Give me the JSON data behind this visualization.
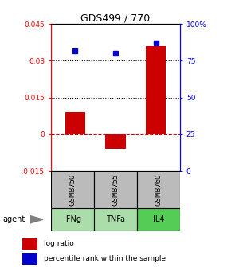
{
  "title": "GDS499 / 770",
  "samples": [
    "GSM8750",
    "GSM8755",
    "GSM8760"
  ],
  "agents": [
    "IFNg",
    "TNFa",
    "IL4"
  ],
  "log_ratios": [
    0.009,
    -0.006,
    0.036
  ],
  "percentile_ranks": [
    0.82,
    0.8,
    0.87
  ],
  "ylim_left": [
    -0.015,
    0.045
  ],
  "ylim_right": [
    0.0,
    1.0
  ],
  "yticks_left": [
    -0.015,
    0.0,
    0.015,
    0.03,
    0.045
  ],
  "ytick_labels_left": [
    "-0.015",
    "0",
    "0.015",
    "0.03",
    "0.045"
  ],
  "yticks_right": [
    0.0,
    0.25,
    0.5,
    0.75,
    1.0
  ],
  "ytick_labels_right": [
    "0",
    "25",
    "50",
    "75",
    "100%"
  ],
  "hlines": [
    0.015,
    0.03
  ],
  "bar_color": "#cc0000",
  "dot_color": "#0000cc",
  "zero_line_color": "#cc0000",
  "agent_colors": [
    "#aaddaa",
    "#aaddaa",
    "#55cc55"
  ],
  "sample_bg_color": "#bbbbbb",
  "legend_bar_label": "log ratio",
  "legend_dot_label": "percentile rank within the sample",
  "bar_width": 0.5
}
